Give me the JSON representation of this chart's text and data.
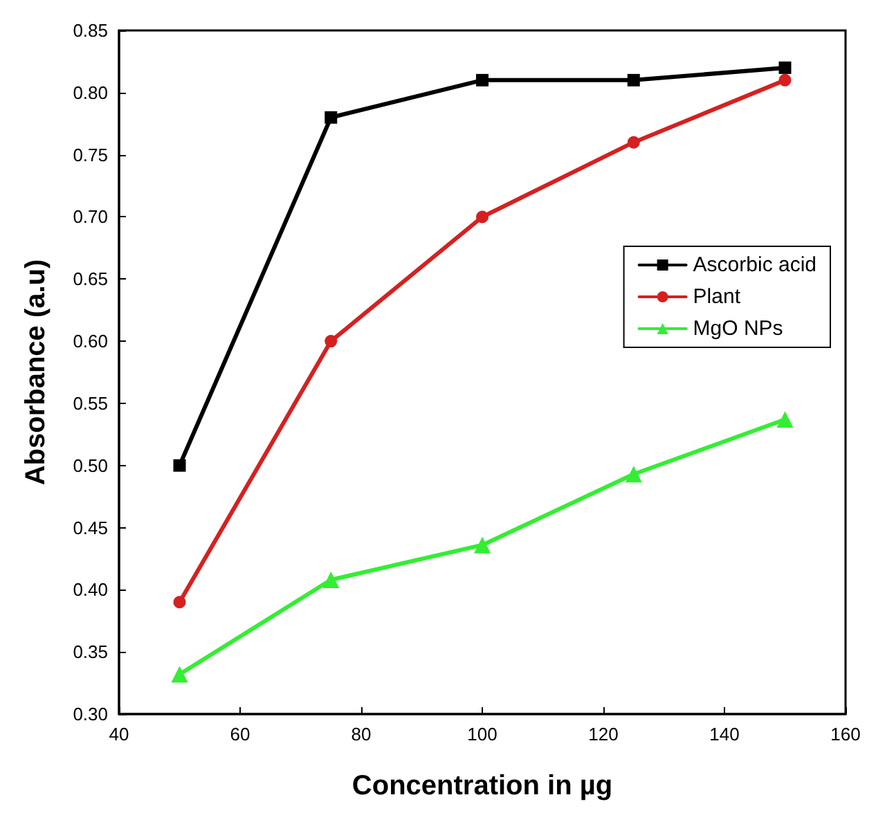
{
  "chart_data": {
    "type": "line",
    "xlabel": "Concentration in µg",
    "ylabel": "Absorbance (a.u)",
    "x": [
      50,
      75,
      100,
      125,
      150
    ],
    "series": [
      {
        "name": "Ascorbic acid",
        "color": "#000000",
        "marker": "square",
        "values": [
          0.5,
          0.78,
          0.81,
          0.81,
          0.82
        ]
      },
      {
        "name": "Plant",
        "color": "#d62020",
        "marker": "circle",
        "values": [
          0.39,
          0.6,
          0.7,
          0.76,
          0.81
        ]
      },
      {
        "name": "MgO NPs",
        "color": "#33ee33",
        "marker": "triangle",
        "values": [
          0.332,
          0.408,
          0.436,
          0.493,
          0.537
        ]
      }
    ],
    "xlim": [
      40,
      160
    ],
    "xticks": [
      40,
      60,
      80,
      100,
      120,
      140,
      160
    ],
    "ylim": [
      0.3,
      0.85
    ],
    "yticks": [
      {
        "value": 0.3,
        "label": "0.30"
      },
      {
        "value": 0.35,
        "label": "0.35"
      },
      {
        "value": 0.4,
        "label": "0.40"
      },
      {
        "value": 0.45,
        "label": "0.45"
      },
      {
        "value": 0.5,
        "label": "0.50"
      },
      {
        "value": 0.55,
        "label": "0.55"
      },
      {
        "value": 0.6,
        "label": "0.60"
      },
      {
        "value": 0.65,
        "label": "0.65"
      },
      {
        "value": 0.7,
        "label": "0.70"
      },
      {
        "value": 0.75,
        "label": "0.75"
      },
      {
        "value": 0.8,
        "label": "0.80"
      },
      {
        "value": 0.85,
        "label": "0.85"
      }
    ],
    "grid": false,
    "legend": "right",
    "line_style": "solid"
  }
}
